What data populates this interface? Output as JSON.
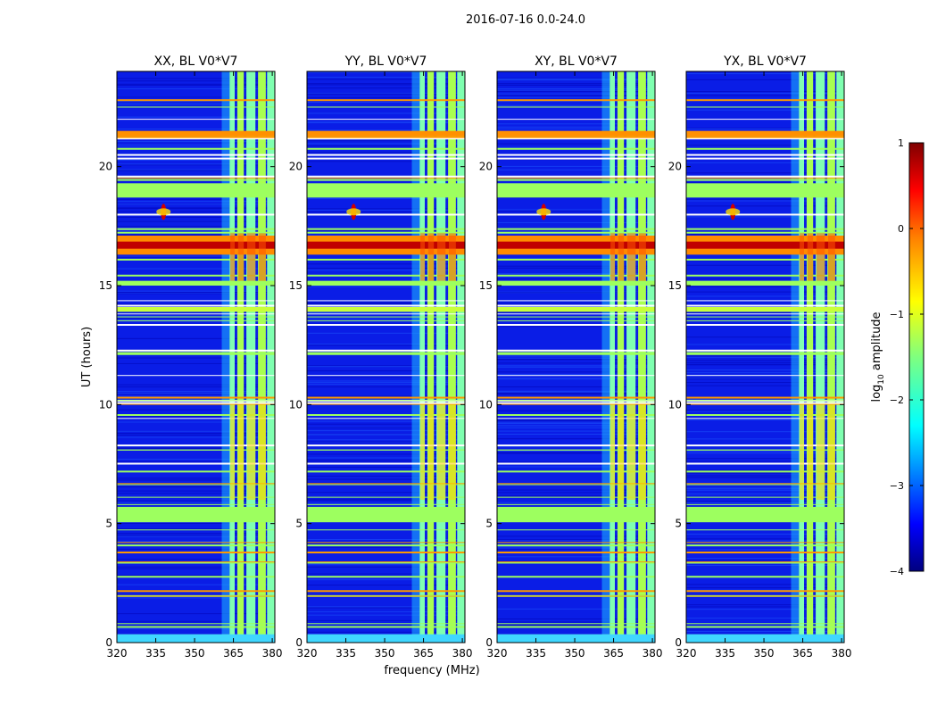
{
  "figure": {
    "suptitle": "2016-07-16 0.0-24.0"
  },
  "chart_data": [
    {
      "type": "heatmap",
      "title": "XX, BL V0*V7",
      "xlabel": "frequency (MHz)",
      "ylabel": "UT (hours)",
      "xlim": [
        320,
        381
      ],
      "ylim": [
        0,
        24
      ],
      "xticks": [
        "320",
        "335",
        "350",
        "365",
        "380"
      ],
      "yticks": [
        "0",
        "5",
        "10",
        "15",
        "20"
      ]
    },
    {
      "type": "heatmap",
      "title": "YY, BL V0*V7",
      "xlabel": "frequency (MHz)",
      "ylabel": "UT (hours)",
      "xlim": [
        320,
        381
      ],
      "ylim": [
        0,
        24
      ],
      "xticks": [
        "320",
        "335",
        "350",
        "365",
        "380"
      ],
      "yticks": [
        "0",
        "5",
        "10",
        "15",
        "20"
      ]
    },
    {
      "type": "heatmap",
      "title": "XY, BL V0*V7",
      "xlabel": "frequency (MHz)",
      "ylabel": "UT (hours)",
      "xlim": [
        320,
        381
      ],
      "ylim": [
        0,
        24
      ],
      "xticks": [
        "320",
        "335",
        "350",
        "365",
        "380"
      ],
      "yticks": [
        "0",
        "5",
        "10",
        "15",
        "20"
      ]
    },
    {
      "type": "heatmap",
      "title": "YX, BL V0*V7",
      "xlabel": "frequency (MHz)",
      "ylabel": "UT (hours)",
      "xlim": [
        320,
        381
      ],
      "ylim": [
        0,
        24
      ],
      "xticks": [
        "320",
        "335",
        "350",
        "365",
        "380"
      ],
      "yticks": [
        "0",
        "5",
        "10",
        "15",
        "20"
      ]
    }
  ],
  "colorbar": {
    "label": "log10 amplitude",
    "range": [
      -4,
      1
    ],
    "ticks": [
      "1",
      "0",
      "−1",
      "−2",
      "−3",
      "−4"
    ],
    "colormap": "jet",
    "colors": [
      "#00007f",
      "#0000ff",
      "#007fff",
      "#00ffff",
      "#7fff7f",
      "#ffff00",
      "#ff7f00",
      "#ff0000",
      "#7f0000"
    ]
  }
}
